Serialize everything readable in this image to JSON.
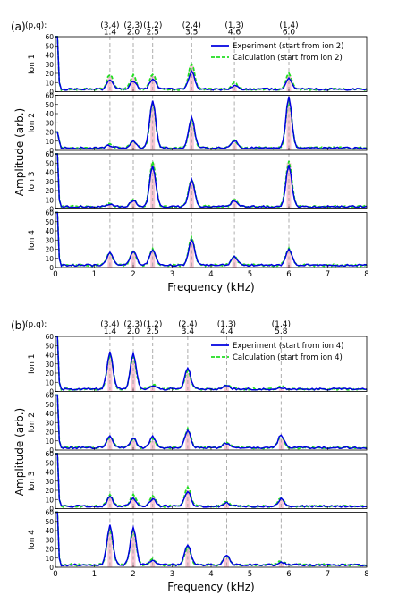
{
  "figure": {
    "shared_ylabel": "Amplitude (arb.)",
    "xlabel": "Frequency (kHz)",
    "colors": {
      "experiment": "#0000e0",
      "calculation": "#22dd22",
      "highlight": "#f5b8c8",
      "guide": "#999999"
    }
  },
  "chart_data": [
    {
      "type": "line",
      "panel_label": "(a)",
      "pq_label": "(p,q):",
      "modes": [
        {
          "pq": "(3,4)",
          "freq": "1.4",
          "x": 1.4
        },
        {
          "pq": "(2,3)",
          "freq": "2.0",
          "x": 2.0
        },
        {
          "pq": "(1,2)",
          "freq": "2.5",
          "x": 2.5
        },
        {
          "pq": "(2,4)",
          "freq": "3.5",
          "x": 3.5
        },
        {
          "pq": "(1,3)",
          "freq": "4.6",
          "x": 4.6
        },
        {
          "pq": "(1,4)",
          "freq": "6.0",
          "x": 6.0
        }
      ],
      "legend": {
        "location": "top-right",
        "experiment": "Experiment (start from ion 2)",
        "calculation": "Calculation (start from ion 2)"
      },
      "xlim": [
        0,
        8
      ],
      "ylim": [
        0,
        60
      ],
      "xticks": [
        "0",
        "1",
        "2",
        "3",
        "4",
        "5",
        "6",
        "7",
        "8"
      ],
      "yticks": [
        "0",
        "10",
        "20",
        "30",
        "40",
        "50",
        "60"
      ],
      "subplots": [
        {
          "ylabel": "Ion 1",
          "peaks": [
            10,
            9,
            12,
            20,
            4,
            12
          ],
          "calc_peaks": [
            16,
            15,
            17,
            28,
            7,
            17
          ],
          "dc": 60
        },
        {
          "ylabel": "Ion 2",
          "peaks": [
            3,
            8,
            52,
            33,
            8,
            55
          ],
          "calc_peaks": [
            4,
            8,
            50,
            30,
            8,
            52
          ],
          "dc": 20
        },
        {
          "ylabel": "Ion 3",
          "peaks": [
            3,
            7,
            45,
            29,
            7,
            45
          ],
          "calc_peaks": [
            4,
            8,
            50,
            30,
            8,
            50
          ],
          "dc": 60
        },
        {
          "ylabel": "Ion 4",
          "peaks": [
            13,
            16,
            17,
            28,
            9,
            18
          ],
          "calc_peaks": [
            14,
            15,
            17,
            30,
            10,
            18
          ],
          "dc": 60
        }
      ]
    },
    {
      "type": "line",
      "panel_label": "(b)",
      "pq_label": "(p,q):",
      "modes": [
        {
          "pq": "(3,4)",
          "freq": "1.4",
          "x": 1.4
        },
        {
          "pq": "(2,3)",
          "freq": "2.0",
          "x": 2.0
        },
        {
          "pq": "(1,2)",
          "freq": "2.5",
          "x": 2.5
        },
        {
          "pq": "(2,4)",
          "freq": "3.4",
          "x": 3.4
        },
        {
          "pq": "(1,3)",
          "freq": "4.4",
          "x": 4.4
        },
        {
          "pq": "(1,4)",
          "freq": "5.8",
          "x": 5.8
        }
      ],
      "legend": {
        "location": "top-right",
        "experiment": "Experiment (start from ion 4)",
        "calculation": "Calculation (start from ion 4)"
      },
      "xlim": [
        0,
        8
      ],
      "ylim": [
        0,
        60
      ],
      "xticks": [
        "0",
        "1",
        "2",
        "3",
        "4",
        "5",
        "6",
        "7",
        "8"
      ],
      "yticks": [
        "0",
        "10",
        "20",
        "30",
        "40",
        "50",
        "60"
      ],
      "subplots": [
        {
          "ylabel": "Ion 1",
          "peaks": [
            40,
            38,
            4,
            22,
            4,
            2
          ],
          "calc_peaks": [
            38,
            35,
            5,
            20,
            5,
            3
          ],
          "dc": 60
        },
        {
          "ylabel": "Ion 2",
          "peaks": [
            13,
            11,
            12,
            19,
            5,
            14
          ],
          "calc_peaks": [
            12,
            10,
            10,
            20,
            6,
            12
          ],
          "dc": 60
        },
        {
          "ylabel": "Ion 3",
          "peaks": [
            10,
            9,
            8,
            16,
            4,
            8
          ],
          "calc_peaks": [
            12,
            12,
            12,
            20,
            5,
            10
          ],
          "dc": 60
        },
        {
          "ylabel": "Ion 4",
          "peaks": [
            43,
            40,
            5,
            22,
            11,
            3
          ],
          "calc_peaks": [
            40,
            38,
            6,
            20,
            10,
            4
          ],
          "dc": 60
        }
      ]
    }
  ]
}
